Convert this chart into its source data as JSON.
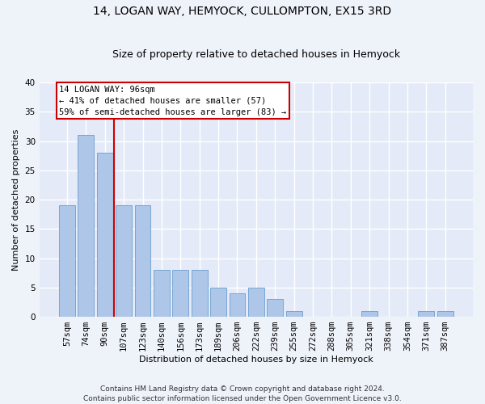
{
  "title": "14, LOGAN WAY, HEMYOCK, CULLOMPTON, EX15 3RD",
  "subtitle": "Size of property relative to detached houses in Hemyock",
  "xlabel": "Distribution of detached houses by size in Hemyock",
  "ylabel": "Number of detached properties",
  "categories": [
    "57sqm",
    "74sqm",
    "90sqm",
    "107sqm",
    "123sqm",
    "140sqm",
    "156sqm",
    "173sqm",
    "189sqm",
    "206sqm",
    "222sqm",
    "239sqm",
    "255sqm",
    "272sqm",
    "288sqm",
    "305sqm",
    "321sqm",
    "338sqm",
    "354sqm",
    "371sqm",
    "387sqm"
  ],
  "values": [
    19,
    31,
    28,
    19,
    19,
    8,
    8,
    8,
    5,
    4,
    5,
    3,
    1,
    0,
    0,
    0,
    1,
    0,
    0,
    1,
    1
  ],
  "bar_color": "#aec6e8",
  "bar_edge_color": "#6a9ecf",
  "vline_x": 2.5,
  "vline_color": "#cc0000",
  "annotation_line1": "14 LOGAN WAY: 96sqm",
  "annotation_line2": "← 41% of detached houses are smaller (57)",
  "annotation_line3": "59% of semi-detached houses are larger (83) →",
  "annotation_box_color": "#ffffff",
  "annotation_box_edge": "#cc0000",
  "ylim": [
    0,
    40
  ],
  "yticks": [
    0,
    5,
    10,
    15,
    20,
    25,
    30,
    35,
    40
  ],
  "footnote": "Contains HM Land Registry data © Crown copyright and database right 2024.\nContains public sector information licensed under the Open Government Licence v3.0.",
  "bg_color": "#eef2f9",
  "plot_bg_color": "#e4eaf7",
  "grid_color": "#ffffff",
  "title_fontsize": 10,
  "subtitle_fontsize": 9,
  "axis_label_fontsize": 8,
  "tick_fontsize": 7.5,
  "footnote_fontsize": 6.5
}
